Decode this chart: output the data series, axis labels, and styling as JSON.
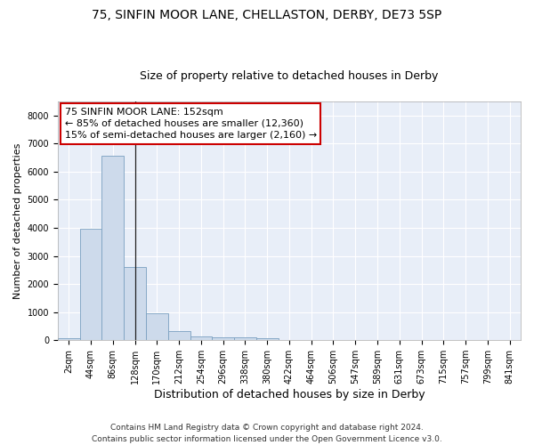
{
  "title1": "75, SINFIN MOOR LANE, CHELLASTON, DERBY, DE73 5SP",
  "title2": "Size of property relative to detached houses in Derby",
  "xlabel": "Distribution of detached houses by size in Derby",
  "ylabel": "Number of detached properties",
  "bar_color": "#cddaeb",
  "bar_edge_color": "#7aa0c0",
  "background_color": "#e8eef8",
  "grid_color": "#ffffff",
  "categories": [
    "2sqm",
    "44sqm",
    "86sqm",
    "128sqm",
    "170sqm",
    "212sqm",
    "254sqm",
    "296sqm",
    "338sqm",
    "380sqm",
    "422sqm",
    "464sqm",
    "506sqm",
    "547sqm",
    "589sqm",
    "631sqm",
    "673sqm",
    "715sqm",
    "757sqm",
    "799sqm",
    "841sqm"
  ],
  "values": [
    80,
    3980,
    6570,
    2620,
    960,
    310,
    130,
    110,
    95,
    60,
    0,
    0,
    0,
    0,
    0,
    0,
    0,
    0,
    0,
    0,
    0
  ],
  "ylim": [
    0,
    8500
  ],
  "yticks": [
    0,
    1000,
    2000,
    3000,
    4000,
    5000,
    6000,
    7000,
    8000
  ],
  "annotation_text": "75 SINFIN MOOR LANE: 152sqm\n← 85% of detached houses are smaller (12,360)\n15% of semi-detached houses are larger (2,160) →",
  "vline_x": 3.5,
  "footnote1": "Contains HM Land Registry data © Crown copyright and database right 2024.",
  "footnote2": "Contains public sector information licensed under the Open Government Licence v3.0.",
  "title1_fontsize": 10,
  "title2_fontsize": 9,
  "xlabel_fontsize": 9,
  "ylabel_fontsize": 8,
  "tick_fontsize": 7,
  "annotation_fontsize": 8,
  "footnote_fontsize": 6.5
}
